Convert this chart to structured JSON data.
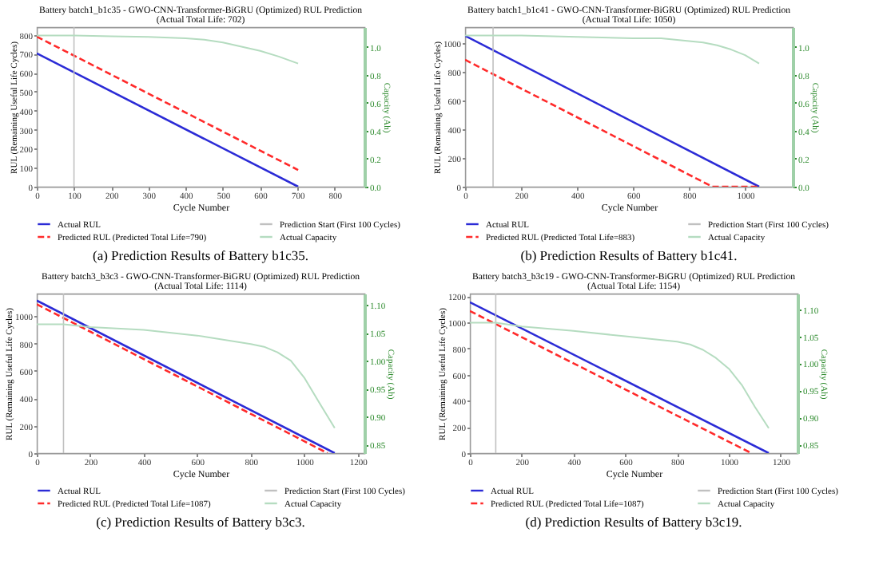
{
  "chart_data": [
    {
      "type": "line",
      "title": "Battery batch1_b1c35 - GWO-CNN-Transformer-BiGRU (Optimized) RUL Prediction",
      "subtitle": "(Actual Total Life: 702)",
      "xlabel": "Cycle Number",
      "ylabel": "RUL (Remaining Useful Life Cycles)",
      "y2label": "Capacity (Ah)",
      "xlim": [
        0,
        880
      ],
      "xticks": [
        0,
        100,
        200,
        300,
        400,
        500,
        600,
        700,
        800
      ],
      "ylim": [
        0,
        840
      ],
      "yticks": [
        0,
        100,
        200,
        300,
        400,
        500,
        600,
        700,
        800
      ],
      "y2lim": [
        0,
        1.14
      ],
      "y2ticks": [
        {
          "value": 0,
          "label": "0.0"
        },
        0.2,
        0.4,
        0.6,
        0.8,
        {
          "value": 1,
          "label": "1.0"
        }
      ],
      "legend": "bottom",
      "annotations": [
        "(a) Prediction Results of Battery b1c35."
      ],
      "series": [
        {
          "name": "Actual RUL",
          "color": "#2b2bd6",
          "x": [
            0,
            702
          ],
          "values": [
            702,
            0
          ],
          "line_style": "solid"
        },
        {
          "name": "Predicted RUL (Predicted Total Life=790)",
          "color": "#ff2a2a",
          "x": [
            0,
            702
          ],
          "values": [
            790,
            88
          ],
          "line_style": "dashed"
        },
        {
          "name": "Actual Capacity",
          "color": "#b5dcc0",
          "axis": "y2",
          "x": [
            0,
            100,
            200,
            300,
            400,
            450,
            500,
            550,
            600,
            650,
            702
          ],
          "values": [
            1.08,
            1.08,
            1.075,
            1.07,
            1.06,
            1.05,
            1.03,
            1.0,
            0.97,
            0.93,
            0.88
          ],
          "line_style": "solid"
        }
      ],
      "ref_lines": [
        {
          "axis": "x",
          "value": 100,
          "label": "Prediction Start (First 100 Cycles)",
          "color": "#c0c0c0"
        }
      ]
    },
    {
      "type": "line",
      "title": "Battery batch1_b1c41 - GWO-CNN-Transformer-BiGRU (Optimized) RUL Prediction",
      "subtitle": "(Actual Total Life: 1050)",
      "xlabel": "Cycle Number",
      "ylabel": "RUL (Remaining Useful Life Cycles)",
      "y2label": "Capacity (Ah)",
      "xlim": [
        0,
        1170
      ],
      "xticks": [
        0,
        200,
        400,
        600,
        800,
        1000
      ],
      "ylim": [
        0,
        1110
      ],
      "yticks": [
        0,
        200,
        400,
        600,
        800,
        1000
      ],
      "y2lim": [
        0,
        1.14
      ],
      "y2ticks": [
        {
          "value": 0,
          "label": "0.0"
        },
        0.2,
        0.4,
        0.6,
        0.8,
        {
          "value": 1,
          "label": "1.0"
        }
      ],
      "legend": "bottom",
      "annotations": [
        "(b) Prediction Results of Battery b1c41."
      ],
      "series": [
        {
          "name": "Actual RUL",
          "color": "#2b2bd6",
          "x": [
            0,
            1050
          ],
          "values": [
            1050,
            0
          ],
          "line_style": "solid"
        },
        {
          "name": "Predicted RUL (Predicted Total Life=883)",
          "color": "#ff2a2a",
          "x": [
            0,
            883,
            1050
          ],
          "values": [
            883,
            0,
            0
          ],
          "line_style": "dashed"
        },
        {
          "name": "Actual Capacity",
          "color": "#b5dcc0",
          "axis": "y2",
          "x": [
            0,
            200,
            400,
            600,
            700,
            800,
            850,
            900,
            950,
            1000,
            1050
          ],
          "values": [
            1.08,
            1.08,
            1.07,
            1.06,
            1.06,
            1.04,
            1.03,
            1.01,
            0.98,
            0.94,
            0.88
          ],
          "line_style": "solid"
        }
      ],
      "ref_lines": [
        {
          "axis": "x",
          "value": 100,
          "label": "Prediction Start (First 100 Cycles)",
          "color": "#c0c0c0"
        }
      ]
    },
    {
      "type": "line",
      "title": "Battery batch3_b3c3 - GWO-CNN-Transformer-BiGRU (Optimized) RUL Prediction",
      "subtitle": "(Actual Total Life: 1114)",
      "xlabel": "Cycle Number",
      "ylabel": "RUL (Remaining Useful Life Cycles)",
      "y2label": "Capacity (Ah)",
      "xlim": [
        0,
        1225
      ],
      "xticks": [
        0,
        200,
        400,
        600,
        800,
        1000,
        1200
      ],
      "ylim": [
        0,
        1165
      ],
      "yticks": [
        0,
        200,
        400,
        600,
        800,
        1000
      ],
      "y2lim": [
        0.835,
        1.12
      ],
      "y2ticks": [
        0.85,
        {
          "value": 0.9,
          "label": "0.90"
        },
        0.95,
        {
          "value": 1,
          "label": "1.00"
        },
        1.05,
        {
          "value": 1.1,
          "label": "1.10"
        }
      ],
      "legend": "bottom",
      "annotations": [
        "(c) Prediction Results of Battery b3c3."
      ],
      "series": [
        {
          "name": "Actual RUL",
          "color": "#2b2bd6",
          "x": [
            0,
            1114
          ],
          "values": [
            1114,
            0
          ],
          "line_style": "solid"
        },
        {
          "name": "Predicted RUL (Predicted Total Life=1087)",
          "color": "#ff2a2a",
          "x": [
            0,
            1087
          ],
          "values": [
            1087,
            0
          ],
          "line_style": "dashed"
        },
        {
          "name": "Actual Capacity",
          "color": "#b5dcc0",
          "axis": "y2",
          "x": [
            0,
            100,
            200,
            400,
            600,
            800,
            850,
            900,
            950,
            1000,
            1050,
            1114
          ],
          "values": [
            1.065,
            1.065,
            1.06,
            1.055,
            1.045,
            1.03,
            1.025,
            1.015,
            1.0,
            0.97,
            0.93,
            0.88
          ],
          "line_style": "solid"
        }
      ],
      "ref_lines": [
        {
          "axis": "x",
          "value": 100,
          "label": "Prediction Start (First 100 Cycles)",
          "color": "#c0c0c0"
        }
      ]
    },
    {
      "type": "line",
      "title": "Battery batch3_b3c19 - GWO-CNN-Transformer-BiGRU (Optimized) RUL Prediction",
      "subtitle": "(Actual Total Life: 1154)",
      "xlabel": "Cycle Number",
      "ylabel": "RUL (Remaining Useful Life Cycles)",
      "y2label": "Capacity (Ah)",
      "xlim": [
        0,
        1265
      ],
      "xticks": [
        0,
        200,
        400,
        600,
        800,
        1000,
        1200
      ],
      "ylim": [
        0,
        1220
      ],
      "yticks": [
        0,
        200,
        400,
        600,
        800,
        1000,
        1200
      ],
      "y2lim": [
        0.834,
        1.129
      ],
      "y2ticks": [
        0.85,
        {
          "value": 0.9,
          "label": "0.90"
        },
        0.95,
        {
          "value": 1,
          "label": "1.00"
        },
        1.05,
        {
          "value": 1.1,
          "label": "1.10"
        }
      ],
      "legend": "bottom",
      "annotations": [
        "(d) Prediction Results of Battery b3c19."
      ],
      "series": [
        {
          "name": "Actual RUL",
          "color": "#2b2bd6",
          "x": [
            0,
            1154
          ],
          "values": [
            1154,
            0
          ],
          "line_style": "solid"
        },
        {
          "name": "Predicted RUL (Predicted Total Life=1087)",
          "color": "#ff2a2a",
          "x": [
            0,
            1087
          ],
          "values": [
            1087,
            0
          ],
          "line_style": "dashed"
        },
        {
          "name": "Actual Capacity",
          "color": "#b5dcc0",
          "axis": "y2",
          "x": [
            0,
            100,
            200,
            400,
            600,
            800,
            850,
            900,
            950,
            1000,
            1050,
            1100,
            1154
          ],
          "values": [
            1.075,
            1.075,
            1.068,
            1.06,
            1.05,
            1.04,
            1.035,
            1.025,
            1.01,
            0.99,
            0.96,
            0.92,
            0.88
          ],
          "line_style": "solid"
        }
      ],
      "ref_lines": [
        {
          "axis": "x",
          "value": 100,
          "label": "Prediction Start (First 100 Cycles)",
          "color": "#c0c0c0"
        }
      ]
    }
  ]
}
